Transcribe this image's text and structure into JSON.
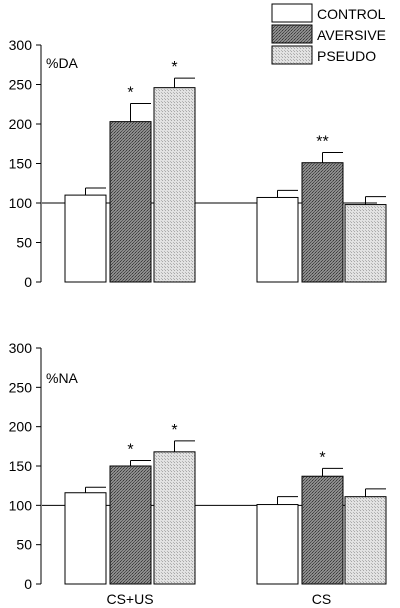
{
  "legend": {
    "placement": "top-right",
    "entries": [
      {
        "label": "CONTROL",
        "pattern": "plain"
      },
      {
        "label": "AVERSIVE",
        "pattern": "dense"
      },
      {
        "label": "PSEUDO",
        "pattern": "light"
      }
    ]
  },
  "colors": {
    "ink": "#000000",
    "background": "#ffffff",
    "control": "#ffffff",
    "aversive": "#7a7a7a",
    "pseudo": "#d4d4d4"
  },
  "chart_data": [
    {
      "type": "bar",
      "title": "",
      "inner_label": "%DA",
      "xlabel": "",
      "ylabel": "",
      "ylim": [
        0,
        300
      ],
      "yticks": [
        0,
        50,
        100,
        150,
        200,
        250,
        300
      ],
      "baseline": 100,
      "grid": false,
      "categories": [
        "CS+US",
        "CS"
      ],
      "show_category_labels": false,
      "series": [
        {
          "name": "CONTROL",
          "values": [
            110,
            107
          ],
          "errors": [
            9,
            9
          ],
          "marks": [
            "",
            ""
          ]
        },
        {
          "name": "AVERSIVE",
          "values": [
            203,
            151
          ],
          "errors": [
            23,
            13
          ],
          "marks": [
            "*",
            "**"
          ]
        },
        {
          "name": "PSEUDO",
          "values": [
            246,
            98
          ],
          "errors": [
            12,
            10
          ],
          "marks": [
            "*",
            ""
          ]
        }
      ]
    },
    {
      "type": "bar",
      "title": "",
      "inner_label": "%NA",
      "xlabel": "",
      "ylabel": "",
      "ylim": [
        0,
        300
      ],
      "yticks": [
        0,
        50,
        100,
        150,
        200,
        250,
        300
      ],
      "baseline": 100,
      "grid": false,
      "categories": [
        "CS+US",
        "CS"
      ],
      "show_category_labels": true,
      "series": [
        {
          "name": "CONTROL",
          "values": [
            116,
            101
          ],
          "errors": [
            7,
            10
          ],
          "marks": [
            "",
            ""
          ]
        },
        {
          "name": "AVERSIVE",
          "values": [
            150,
            137
          ],
          "errors": [
            7,
            10
          ],
          "marks": [
            "*",
            "*"
          ]
        },
        {
          "name": "PSEUDO",
          "values": [
            168,
            111
          ],
          "errors": [
            14,
            10
          ],
          "marks": [
            "*",
            ""
          ]
        }
      ]
    }
  ]
}
